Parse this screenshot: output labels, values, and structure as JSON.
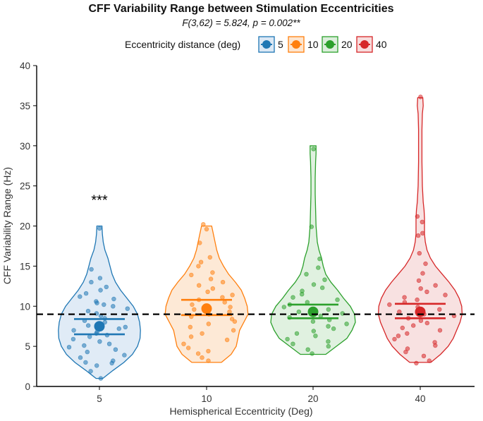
{
  "chart_data": {
    "type": "violin",
    "title": "CFF Variability Range between Stimulation Eccentricities",
    "subtitle": "F(3,62) = 5.824, p = 0.002**",
    "xlabel": "Hemispherical Eccentricity (Deg)",
    "ylabel": "CFF Variability Range (Hz)",
    "ylim": [
      0,
      40
    ],
    "yticks": [
      0,
      5,
      10,
      15,
      20,
      25,
      30,
      35,
      40
    ],
    "reference_line": 9,
    "legend": {
      "title": "Eccentricity distance (deg)",
      "position": "top",
      "entries": [
        "5",
        "10",
        "20",
        "40"
      ]
    },
    "categories": [
      "5",
      "10",
      "20",
      "40"
    ],
    "significance": [
      {
        "category": "5",
        "label": "***",
        "y": 23.5
      }
    ],
    "series": [
      {
        "name": "5",
        "color": "#1f77b4",
        "fill": "#dbe8f5",
        "mean": 7.5,
        "ci_upper": 8.4,
        "ci_lower": 6.5,
        "violin_min": 1,
        "violin_max": 20,
        "density": [
          [
            1,
            0.08
          ],
          [
            2,
            0.32
          ],
          [
            3,
            0.58
          ],
          [
            4,
            0.78
          ],
          [
            5,
            0.9
          ],
          [
            6,
            0.96
          ],
          [
            7,
            0.97
          ],
          [
            8,
            0.95
          ],
          [
            9,
            0.9
          ],
          [
            10,
            0.8
          ],
          [
            11,
            0.65
          ],
          [
            12,
            0.5
          ],
          [
            13,
            0.38
          ],
          [
            14,
            0.3
          ],
          [
            15,
            0.25
          ],
          [
            16,
            0.2
          ],
          [
            17,
            0.13
          ],
          [
            18,
            0.09
          ],
          [
            19,
            0.07
          ],
          [
            20,
            0.06
          ]
        ],
        "points": [
          1.0,
          1.9,
          2.6,
          2.9,
          3.0,
          3.2,
          3.6,
          3.9,
          4.3,
          4.6,
          4.9,
          5.1,
          5.3,
          5.6,
          5.9,
          6.2,
          6.4,
          6.6,
          6.8,
          7.0,
          7.2,
          7.4,
          7.6,
          7.8,
          8.0,
          8.2,
          8.5,
          8.8,
          9.1,
          9.4,
          9.7,
          10.0,
          10.2,
          10.4,
          10.6,
          10.9,
          11.2,
          11.6,
          12.0,
          12.4,
          13.0,
          13.5,
          14.6,
          19.7
        ]
      },
      {
        "name": "10",
        "color": "#ff7f0e",
        "fill": "#fde5cf",
        "mean": 9.7,
        "ci_upper": 10.8,
        "ci_lower": 8.9,
        "violin_min": 3,
        "violin_max": 20,
        "density": [
          [
            3,
            0.35
          ],
          [
            4,
            0.58
          ],
          [
            5,
            0.7
          ],
          [
            6,
            0.74
          ],
          [
            7,
            0.78
          ],
          [
            8,
            0.88
          ],
          [
            9,
            0.98
          ],
          [
            10,
            0.96
          ],
          [
            11,
            0.9
          ],
          [
            12,
            0.82
          ],
          [
            13,
            0.68
          ],
          [
            14,
            0.52
          ],
          [
            15,
            0.4
          ],
          [
            16,
            0.3
          ],
          [
            17,
            0.24
          ],
          [
            18,
            0.2
          ],
          [
            19,
            0.16
          ],
          [
            20,
            0.12
          ]
        ],
        "points": [
          3.2,
          3.6,
          4.1,
          4.4,
          4.8,
          5.3,
          5.8,
          6.2,
          6.6,
          7.0,
          7.4,
          7.8,
          8.1,
          8.4,
          8.7,
          9.0,
          9.3,
          9.6,
          9.9,
          10.2,
          10.5,
          10.8,
          11.1,
          11.4,
          11.8,
          12.2,
          12.6,
          13.0,
          13.4,
          13.9,
          14.2,
          15.0,
          15.5,
          16.1,
          17.9,
          19.6,
          20.2
        ]
      },
      {
        "name": "20",
        "color": "#2ca02c",
        "fill": "#dbeedb",
        "mean": 9.3,
        "ci_upper": 10.2,
        "ci_lower": 8.5,
        "violin_min": 4,
        "violin_max": 30,
        "density": [
          [
            4,
            0.3
          ],
          [
            5,
            0.55
          ],
          [
            6,
            0.8
          ],
          [
            7,
            0.92
          ],
          [
            8,
            1.0
          ],
          [
            9,
            0.98
          ],
          [
            10,
            0.88
          ],
          [
            11,
            0.72
          ],
          [
            12,
            0.58
          ],
          [
            13,
            0.42
          ],
          [
            14,
            0.3
          ],
          [
            15,
            0.24
          ],
          [
            16,
            0.2
          ],
          [
            17,
            0.14
          ],
          [
            18,
            0.1
          ],
          [
            20,
            0.07
          ],
          [
            22,
            0.06
          ],
          [
            24,
            0.05
          ],
          [
            26,
            0.05
          ],
          [
            28,
            0.06
          ],
          [
            29,
            0.07
          ],
          [
            30,
            0.07
          ]
        ],
        "points": [
          4.1,
          4.6,
          5.0,
          5.3,
          5.6,
          5.9,
          6.3,
          6.6,
          6.9,
          7.2,
          7.5,
          7.8,
          8.1,
          8.3,
          8.6,
          8.8,
          9.1,
          9.3,
          9.6,
          9.9,
          10.2,
          10.5,
          10.8,
          11.1,
          11.5,
          11.9,
          12.3,
          12.7,
          13.3,
          14.0,
          14.8,
          15.9,
          19.9,
          29.6
        ]
      },
      {
        "name": "40",
        "color": "#d62728",
        "fill": "#f7dcdc",
        "mean": 9.3,
        "ci_upper": 10.3,
        "ci_lower": 8.5,
        "violin_min": 3,
        "violin_max": 36,
        "density": [
          [
            3,
            0.25
          ],
          [
            4,
            0.48
          ],
          [
            5,
            0.66
          ],
          [
            6,
            0.78
          ],
          [
            7,
            0.86
          ],
          [
            8,
            0.94
          ],
          [
            9,
            0.99
          ],
          [
            10,
            0.98
          ],
          [
            11,
            0.92
          ],
          [
            12,
            0.82
          ],
          [
            13,
            0.68
          ],
          [
            14,
            0.52
          ],
          [
            15,
            0.36
          ],
          [
            16,
            0.24
          ],
          [
            17,
            0.16
          ],
          [
            18,
            0.12
          ],
          [
            19,
            0.1
          ],
          [
            20,
            0.1
          ],
          [
            21,
            0.1
          ],
          [
            22,
            0.09
          ],
          [
            23,
            0.07
          ],
          [
            25,
            0.05
          ],
          [
            28,
            0.04
          ],
          [
            32,
            0.04
          ],
          [
            34,
            0.05
          ],
          [
            35,
            0.07
          ],
          [
            36,
            0.06
          ]
        ],
        "points": [
          2.9,
          3.2,
          3.8,
          4.3,
          4.7,
          5.1,
          5.5,
          5.9,
          6.3,
          6.6,
          7.0,
          7.3,
          7.6,
          7.9,
          8.2,
          8.5,
          8.8,
          9.0,
          9.3,
          9.6,
          9.9,
          10.2,
          10.5,
          10.8,
          11.1,
          11.4,
          11.8,
          12.2,
          12.6,
          13.2,
          14.1,
          15.3,
          16.6,
          18.8,
          19.1,
          20.5,
          21.2,
          36.1
        ]
      }
    ]
  }
}
